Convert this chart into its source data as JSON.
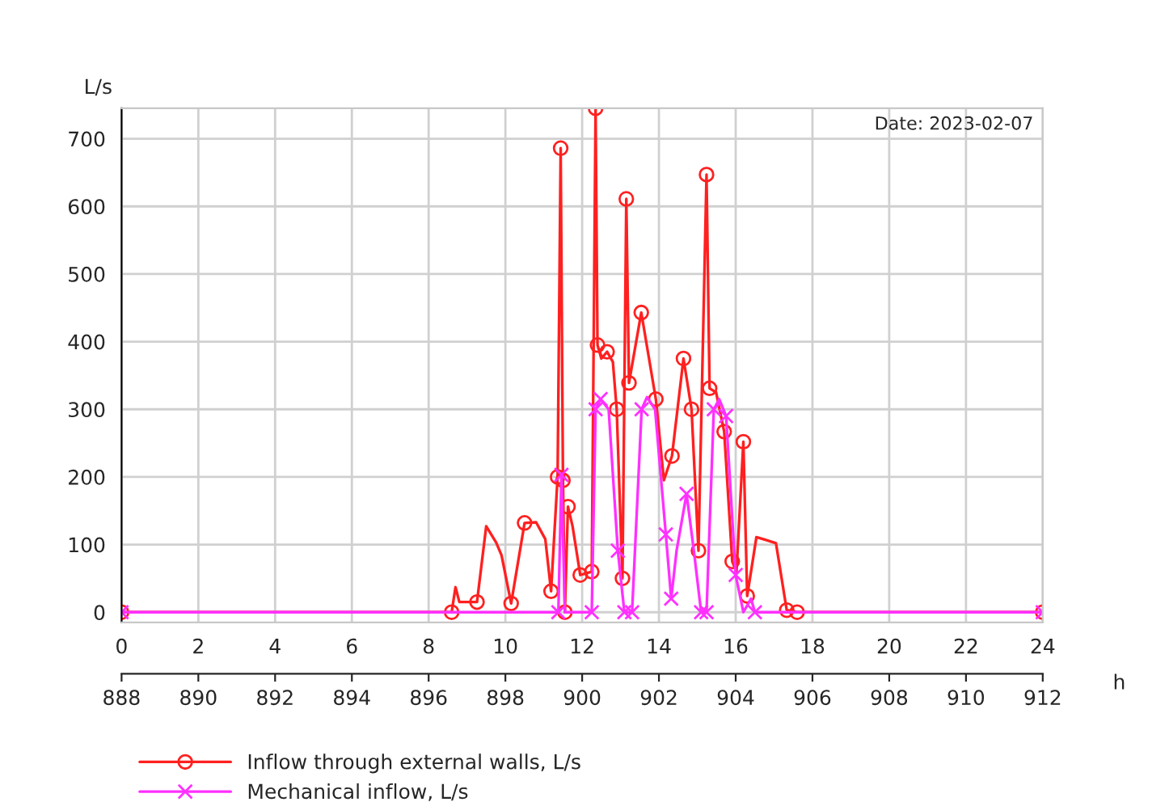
{
  "chart_data": {
    "type": "line",
    "xlabel": "h",
    "ylabel": "L/s",
    "annotations": [
      "Date: 2023-02-07"
    ],
    "xlim": [
      0,
      24
    ],
    "xticks": [
      0,
      2,
      4,
      6,
      8,
      10,
      12,
      14,
      16,
      18,
      20,
      22,
      24
    ],
    "x2lim": [
      888,
      912
    ],
    "x2ticks": [
      888,
      890,
      892,
      894,
      896,
      898,
      900,
      902,
      904,
      906,
      908,
      910,
      912
    ],
    "ylim": [
      -15,
      745
    ],
    "yticks": [
      0,
      100,
      200,
      300,
      400,
      500,
      600,
      700
    ],
    "grid": true,
    "legend": "bottom",
    "line_style": "solid",
    "series": [
      {
        "name": "Inflow through external walls, L/s",
        "color": "#ff2020",
        "marker": "circle",
        "x": [
          0,
          8.6,
          8.7,
          8.8,
          9.26,
          9.5,
          9.76,
          9.9,
          10.15,
          10.5,
          10.8,
          11.04,
          11.19,
          11.36,
          11.44,
          11.5,
          11.55,
          11.63,
          11.75,
          11.85,
          11.95,
          12.25,
          12.35,
          12.4,
          12.5,
          12.65,
          12.8,
          12.9,
          13.05,
          13.15,
          13.22,
          13.54,
          13.92,
          14.13,
          14.34,
          14.64,
          14.85,
          15.03,
          15.24,
          15.32,
          15.49,
          15.7,
          15.91,
          16.02,
          16.2,
          16.3,
          16.54,
          16.77,
          17.05,
          17.33,
          17.6,
          24
        ],
        "values": [
          0,
          0,
          37,
          15,
          15,
          127,
          103,
          84,
          13,
          132,
          133,
          108,
          31,
          200,
          686,
          195,
          0,
          156,
          127,
          91,
          55,
          60,
          745,
          395,
          375,
          385,
          370,
          300,
          50,
          611,
          339,
          443,
          315,
          195,
          231,
          375,
          300,
          91,
          647,
          331,
          325,
          267,
          75,
          59,
          252,
          24,
          111,
          107,
          102,
          3,
          0,
          0
        ]
      },
      {
        "name": "Mechanical inflow, L/s",
        "color": "#ff30ff",
        "marker": "cross",
        "x": [
          0,
          11.38,
          11.46,
          11.55,
          12.25,
          12.35,
          12.48,
          12.69,
          12.93,
          13.1,
          13.3,
          13.55,
          13.69,
          13.9,
          14.18,
          14.32,
          14.46,
          14.72,
          14.91,
          15.1,
          15.24,
          15.43,
          15.57,
          15.75,
          16.0,
          16.2,
          16.4,
          16.5,
          24
        ],
        "values": [
          0,
          0,
          203,
          0,
          0,
          300,
          315,
          300,
          91,
          0,
          0,
          300,
          318,
          300,
          115,
          20,
          91,
          175,
          91,
          0,
          0,
          300,
          315,
          290,
          55,
          0,
          20,
          0,
          0
        ]
      }
    ]
  }
}
